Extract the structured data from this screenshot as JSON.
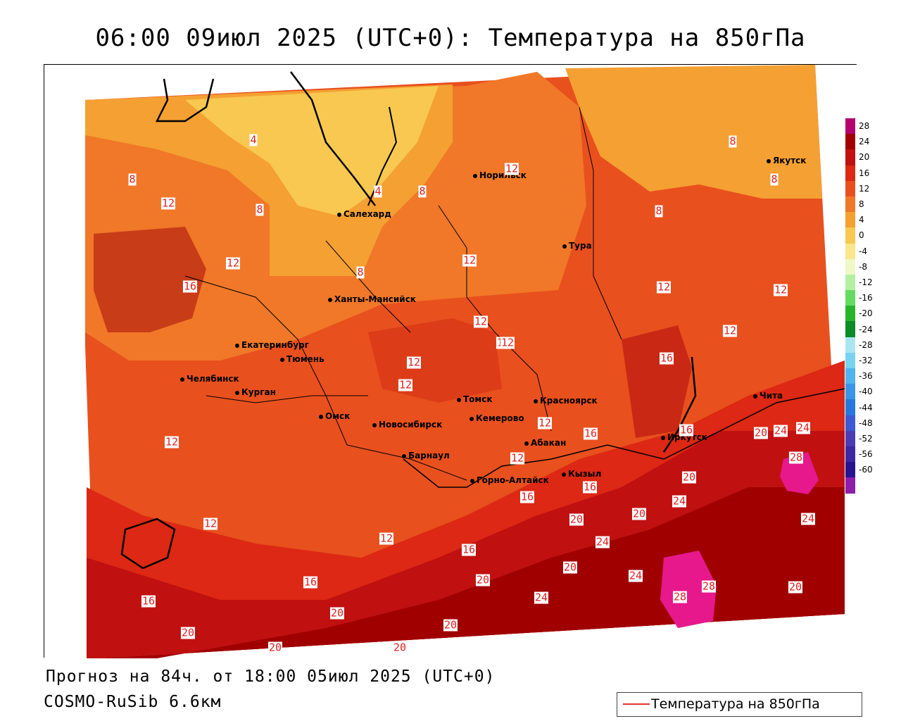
{
  "title": "06:00 09июл 2025 (UTC+0): Температура на 850гПа",
  "footer": {
    "forecast": "Прогноз на 84ч. от 18:00 05июл 2025 (UTC+0)",
    "model": "COSMO-RuSib 6.6км"
  },
  "legend": {
    "label": "Температура на 850гПа",
    "line_color": "#e83030"
  },
  "colorbar": {
    "ticks": [
      "28",
      "24",
      "20",
      "16",
      "12",
      "8",
      "4",
      "0",
      "-4",
      "-8",
      "-12",
      "-16",
      "-20",
      "-24",
      "-28",
      "-32",
      "-36",
      "-40",
      "-44",
      "-48",
      "-52",
      "-56",
      "-60"
    ],
    "colors": [
      "#b4006e",
      "#a00000",
      "#c01010",
      "#dc2814",
      "#e8501e",
      "#f07828",
      "#f5a032",
      "#f8c850",
      "#fae68c",
      "#f0f8c8",
      "#b4f0a0",
      "#64dc64",
      "#28b428",
      "#0a8c28",
      "#aae6f0",
      "#78d2f0",
      "#50b4f0",
      "#3c96e6",
      "#2878dc",
      "#3c5ad2",
      "#4b3cb4",
      "#3c28a0",
      "#28148c",
      "#8c1eaa"
    ]
  },
  "cities": [
    {
      "name": "Норильск"
    },
    {
      "name": "Якутск"
    },
    {
      "name": "Салехард"
    },
    {
      "name": "Тура"
    },
    {
      "name": "Ханты-Мансийск"
    },
    {
      "name": "Екатеринбург"
    },
    {
      "name": "Тюмень"
    },
    {
      "name": "Челябинск"
    },
    {
      "name": "Курган"
    },
    {
      "name": "Омск"
    },
    {
      "name": "Новосибирск"
    },
    {
      "name": "Томск"
    },
    {
      "name": "Кемерово"
    },
    {
      "name": "Красноярск"
    },
    {
      "name": "Барнаул"
    },
    {
      "name": "Абакан"
    },
    {
      "name": "Кызыл"
    },
    {
      "name": "Горно-Алтайск"
    },
    {
      "name": "Иркутск"
    },
    {
      "name": "Чита"
    }
  ],
  "contour_labels": [
    "4",
    "4",
    "8",
    "8",
    "8",
    "8",
    "8",
    "8",
    "8",
    "8",
    "12",
    "12",
    "12",
    "12",
    "12",
    "12",
    "12",
    "12",
    "12",
    "12",
    "12",
    "12",
    "12",
    "12",
    "12",
    "12",
    "12",
    "16",
    "16",
    "16",
    "16",
    "16",
    "16",
    "16",
    "16",
    "16",
    "20",
    "20",
    "20",
    "20",
    "20",
    "20",
    "20",
    "20",
    "20",
    "20",
    "20",
    "20",
    "24",
    "24",
    "24",
    "24",
    "24",
    "24",
    "24",
    "28",
    "28",
    "28"
  ]
}
